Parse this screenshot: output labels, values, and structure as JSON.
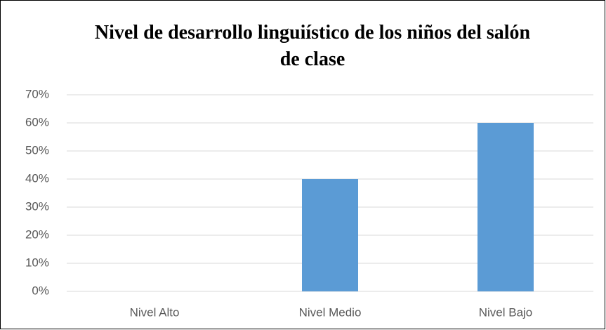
{
  "chart_data": {
    "type": "bar",
    "title": "Nivel de desarrollo linguiístico de los niños del salón de clase",
    "categories": [
      "Nivel Alto",
      "Nivel Medio",
      "Nivel Bajo"
    ],
    "values": [
      0,
      40,
      60
    ],
    "color": "#5b9bd5",
    "ylim": [
      0,
      70
    ],
    "yticks": [
      {
        "value": 0,
        "label": "0%"
      },
      {
        "value": 10,
        "label": "10%"
      },
      {
        "value": 20,
        "label": "20%"
      },
      {
        "value": 30,
        "label": "30%"
      },
      {
        "value": 40,
        "label": "40%"
      },
      {
        "value": 50,
        "label": "50%"
      },
      {
        "value": 60,
        "label": "60%"
      },
      {
        "value": 70,
        "label": "70%"
      }
    ],
    "grid": true
  }
}
